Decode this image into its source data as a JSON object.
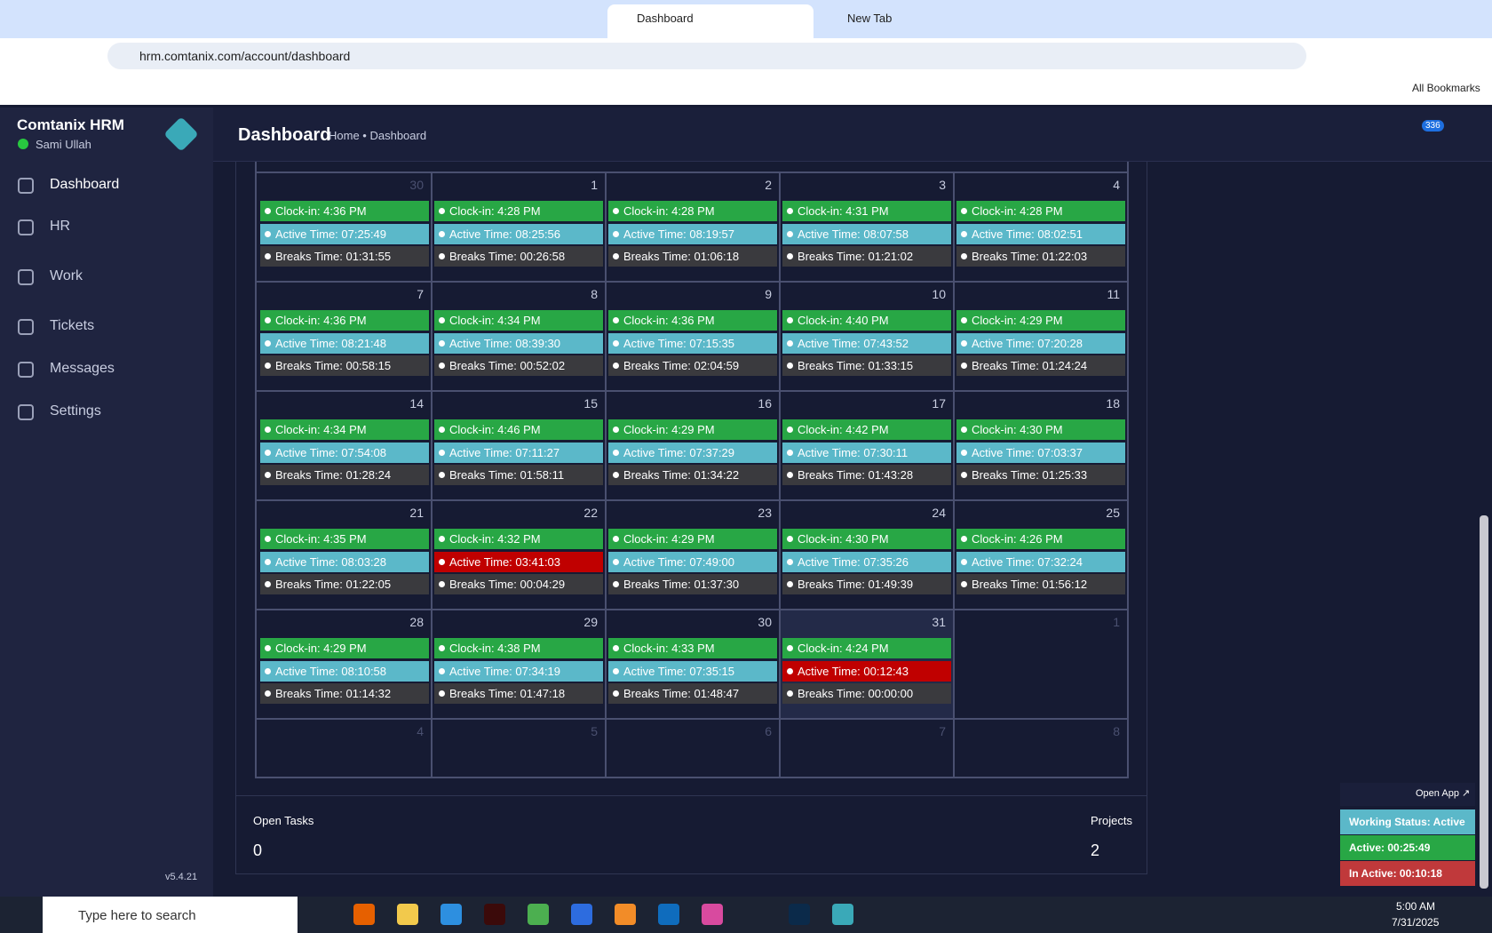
{
  "browser": {
    "tabs": [
      "Dashboard",
      "New Tab"
    ],
    "url": "hrm.comtanix.com/account/dashboard",
    "bookmarks": "All Bookmarks"
  },
  "sidebar": {
    "brand": "Comtanix HRM",
    "user": "Sami Ullah",
    "menu": [
      "Dashboard",
      "HR",
      "Work",
      "Tickets",
      "Messages",
      "Settings"
    ],
    "version": "v5.4.21"
  },
  "header": {
    "title": "Dashboard",
    "breadcrumb": [
      "Home",
      "Dashboard"
    ],
    "notifications": 336
  },
  "calendar": {
    "weeks": [
      [
        {
          "day": 30,
          "other_month": true,
          "clock_in": "Clock-in: 4:36 PM",
          "active": "Active Time: 07:25:49",
          "breaks": "Breaks Time: 01:31:55"
        },
        {
          "day": 1,
          "clock_in": "Clock-in: 4:28 PM",
          "active": "Active Time: 08:25:56",
          "breaks": "Breaks Time: 00:26:58"
        },
        {
          "day": 2,
          "clock_in": "Clock-in: 4:28 PM",
          "active": "Active Time: 08:19:57",
          "breaks": "Breaks Time: 01:06:18"
        },
        {
          "day": 3,
          "clock_in": "Clock-in: 4:31 PM",
          "active": "Active Time: 08:07:58",
          "breaks": "Breaks Time: 01:21:02"
        },
        {
          "day": 4,
          "clock_in": "Clock-in: 4:28 PM",
          "active": "Active Time: 08:02:51",
          "breaks": "Breaks Time: 01:22:03"
        }
      ],
      [
        {
          "day": 7,
          "clock_in": "Clock-in: 4:36 PM",
          "active": "Active Time: 08:21:48",
          "breaks": "Breaks Time: 00:58:15"
        },
        {
          "day": 8,
          "clock_in": "Clock-in: 4:34 PM",
          "active": "Active Time: 08:39:30",
          "breaks": "Breaks Time: 00:52:02"
        },
        {
          "day": 9,
          "clock_in": "Clock-in: 4:36 PM",
          "active": "Active Time: 07:15:35",
          "breaks": "Breaks Time: 02:04:59"
        },
        {
          "day": 10,
          "clock_in": "Clock-in: 4:40 PM",
          "active": "Active Time: 07:43:52",
          "breaks": "Breaks Time: 01:33:15"
        },
        {
          "day": 11,
          "clock_in": "Clock-in: 4:29 PM",
          "active": "Active Time: 07:20:28",
          "breaks": "Breaks Time: 01:24:24"
        }
      ],
      [
        {
          "day": 14,
          "clock_in": "Clock-in: 4:34 PM",
          "active": "Active Time: 07:54:08",
          "breaks": "Breaks Time: 01:28:24"
        },
        {
          "day": 15,
          "clock_in": "Clock-in: 4:46 PM",
          "active": "Active Time: 07:11:27",
          "breaks": "Breaks Time: 01:58:11"
        },
        {
          "day": 16,
          "clock_in": "Clock-in: 4:29 PM",
          "active": "Active Time: 07:37:29",
          "breaks": "Breaks Time: 01:34:22"
        },
        {
          "day": 17,
          "clock_in": "Clock-in: 4:42 PM",
          "active": "Active Time: 07:30:11",
          "breaks": "Breaks Time: 01:43:28"
        },
        {
          "day": 18,
          "clock_in": "Clock-in: 4:30 PM",
          "active": "Active Time: 07:03:37",
          "breaks": "Breaks Time: 01:25:33"
        }
      ],
      [
        {
          "day": 21,
          "clock_in": "Clock-in: 4:35 PM",
          "active": "Active Time: 08:03:28",
          "breaks": "Breaks Time: 01:22:05"
        },
        {
          "day": 22,
          "clock_in": "Clock-in: 4:32 PM",
          "active": "Active Time: 03:41:03",
          "active_color": "#c00000",
          "breaks": "Breaks Time: 00:04:29"
        },
        {
          "day": 23,
          "clock_in": "Clock-in: 4:29 PM",
          "active": "Active Time: 07:49:00",
          "breaks": "Breaks Time: 01:37:30"
        },
        {
          "day": 24,
          "clock_in": "Clock-in: 4:30 PM",
          "active": "Active Time: 07:35:26",
          "breaks": "Breaks Time: 01:49:39"
        },
        {
          "day": 25,
          "clock_in": "Clock-in: 4:26 PM",
          "active": "Active Time: 07:32:24",
          "breaks": "Breaks Time: 01:56:12"
        }
      ],
      [
        {
          "day": 28,
          "clock_in": "Clock-in: 4:29 PM",
          "active": "Active Time: 08:10:58",
          "breaks": "Breaks Time: 01:14:32"
        },
        {
          "day": 29,
          "clock_in": "Clock-in: 4:38 PM",
          "active": "Active Time: 07:34:19",
          "breaks": "Breaks Time: 01:47:18"
        },
        {
          "day": 30,
          "clock_in": "Clock-in: 4:33 PM",
          "active": "Active Time: 07:35:15",
          "breaks": "Breaks Time: 01:48:47"
        },
        {
          "day": 31,
          "today": true,
          "clock_in": "Clock-in: 4:24 PM",
          "active": "Active Time: 00:12:43",
          "active_color": "#c00000",
          "breaks": "Breaks Time: 00:00:00"
        },
        {
          "day": 1,
          "other_month": true
        }
      ],
      [
        {
          "day": 4,
          "other_month": true
        },
        {
          "day": 5,
          "other_month": true
        },
        {
          "day": 6,
          "other_month": true
        },
        {
          "day": 7,
          "other_month": true
        },
        {
          "day": 8,
          "other_month": true
        }
      ]
    ]
  },
  "summary": {
    "open_tasks_label": "Open Tasks",
    "open_tasks": 0,
    "projects_label": "Projects",
    "projects": 2
  },
  "status_widget": {
    "open_app": "Open App ↗",
    "working_status": "Working Status: Active",
    "active": "Active: 00:25:49",
    "inactive": "In Active: 00:10:18"
  },
  "taskbar": {
    "search": "Type here to search",
    "time": "5:00 AM",
    "date": "7/31/2025"
  }
}
